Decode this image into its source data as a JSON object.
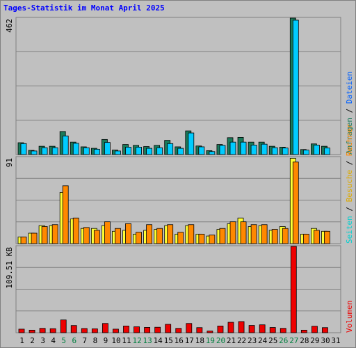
{
  "title": "Tages-Statistik im Monat April 2025",
  "colors": {
    "frame": "#c0c0c0",
    "title": "#0000ff",
    "anfragen": "#1a7a5a",
    "dateien": "#00ccff",
    "seiten": "#00d0d0",
    "besuche": "#ffff33",
    "rechner": "#ff8800",
    "volumen": "#ee0000",
    "kb_label": "#000000",
    "weekend": "#008040"
  },
  "chart_data": [
    {
      "type": "bar",
      "panel": "hits-files",
      "top_label": "462",
      "ylim": [
        0,
        462
      ],
      "legend_side": "right",
      "legend": [
        {
          "name": "Anfragen",
          "color": "#1a7a5a"
        },
        {
          "name": "Dateien",
          "color": "#00ccff"
        }
      ],
      "categories": [
        "1",
        "2",
        "3",
        "4",
        "5",
        "6",
        "7",
        "8",
        "9",
        "10",
        "11",
        "12",
        "13",
        "14",
        "15",
        "16",
        "17",
        "18",
        "19",
        "20",
        "21",
        "22",
        "23",
        "24",
        "25",
        "26",
        "27",
        "28",
        "29",
        "30",
        "31"
      ],
      "series": [
        {
          "name": "Anfragen",
          "color": "#1a7a5a",
          "values": [
            40,
            14,
            28,
            28,
            78,
            42,
            26,
            21,
            51,
            15,
            34,
            31,
            27,
            31,
            48,
            26,
            80,
            29,
            13,
            34,
            57,
            58,
            42,
            42,
            28,
            25,
            462,
            17,
            36,
            28,
            0
          ]
        },
        {
          "name": "Dateien",
          "color": "#00ccff",
          "values": [
            37,
            12,
            23,
            23,
            63,
            38,
            23,
            18,
            41,
            12,
            25,
            25,
            21,
            23,
            37,
            21,
            73,
            26,
            10,
            31,
            42,
            42,
            32,
            35,
            23,
            22,
            455,
            15,
            32,
            22,
            0
          ]
        }
      ]
    },
    {
      "type": "bar",
      "panel": "visits",
      "top_label": "91",
      "ylim": [
        0,
        91
      ],
      "legend_side": "right",
      "legend": [
        {
          "name": "Seiten",
          "color": "#00d0d0"
        },
        {
          "name": "Besuche",
          "color": "#ffff33"
        },
        {
          "name": "Rechner",
          "color": "#ff8800"
        }
      ],
      "categories": [
        "1",
        "2",
        "3",
        "4",
        "5",
        "6",
        "7",
        "8",
        "9",
        "10",
        "11",
        "12",
        "13",
        "14",
        "15",
        "16",
        "17",
        "18",
        "19",
        "20",
        "21",
        "22",
        "23",
        "24",
        "25",
        "26",
        "27",
        "28",
        "29",
        "30",
        "31"
      ],
      "series": [
        {
          "name": "Besuche",
          "color": "#ffff33",
          "values": [
            7,
            11,
            19,
            19,
            54,
            26,
            16,
            16,
            19,
            13,
            14,
            10,
            14,
            15,
            19,
            10,
            19,
            10,
            8,
            15,
            21,
            27,
            18,
            19,
            14,
            18,
            90,
            10,
            16,
            13,
            0
          ]
        },
        {
          "name": "Rechner",
          "color": "#ff8800",
          "values": [
            7,
            11,
            18,
            20,
            61,
            27,
            17,
            14,
            23,
            16,
            21,
            12,
            20,
            16,
            20,
            12,
            20,
            10,
            9,
            16,
            23,
            23,
            20,
            20,
            15,
            16,
            86,
            10,
            14,
            13,
            0
          ]
        }
      ]
    },
    {
      "type": "bar",
      "panel": "volume",
      "top_label": "109.51 KB",
      "ylim": [
        0,
        109.51
      ],
      "legend_side": "right",
      "legend": [
        {
          "name": "Volumen",
          "color": "#ee0000"
        }
      ],
      "categories": [
        "1",
        "2",
        "3",
        "4",
        "5",
        "6",
        "7",
        "8",
        "9",
        "10",
        "11",
        "12",
        "13",
        "14",
        "15",
        "16",
        "17",
        "18",
        "19",
        "20",
        "21",
        "22",
        "23",
        "24",
        "25",
        "26",
        "27",
        "28",
        "29",
        "30",
        "31"
      ],
      "series": [
        {
          "name": "Volumen",
          "color": "#ee0000",
          "values": [
            4.5,
            3.2,
            5.5,
            5.1,
            16.2,
            9.1,
            5.3,
            4.9,
            11.7,
            4.5,
            8.5,
            7.5,
            6.7,
            6.9,
            10.6,
            5.5,
            11.7,
            6.4,
            2.1,
            8.5,
            13.2,
            14.1,
            9.2,
            10.0,
            6.6,
            5.5,
            109.51,
            3.2,
            8.2,
            6.4,
            0
          ]
        }
      ]
    }
  ],
  "x_axis": {
    "labels": [
      "1",
      "2",
      "3",
      "4",
      "5",
      "6",
      "7",
      "8",
      "9",
      "10",
      "11",
      "12",
      "13",
      "14",
      "15",
      "16",
      "17",
      "18",
      "19",
      "20",
      "21",
      "22",
      "23",
      "24",
      "25",
      "26",
      "27",
      "28",
      "29",
      "30",
      "31"
    ],
    "weekend_days": [
      5,
      6,
      12,
      13,
      19,
      20,
      26,
      27
    ]
  },
  "legends": {
    "top": [
      "Anfragen",
      "/",
      "Dateien"
    ],
    "mid": [
      "Seiten",
      "/",
      "Besuche",
      "/",
      "Rechner"
    ],
    "bot": [
      "Volumen"
    ]
  }
}
